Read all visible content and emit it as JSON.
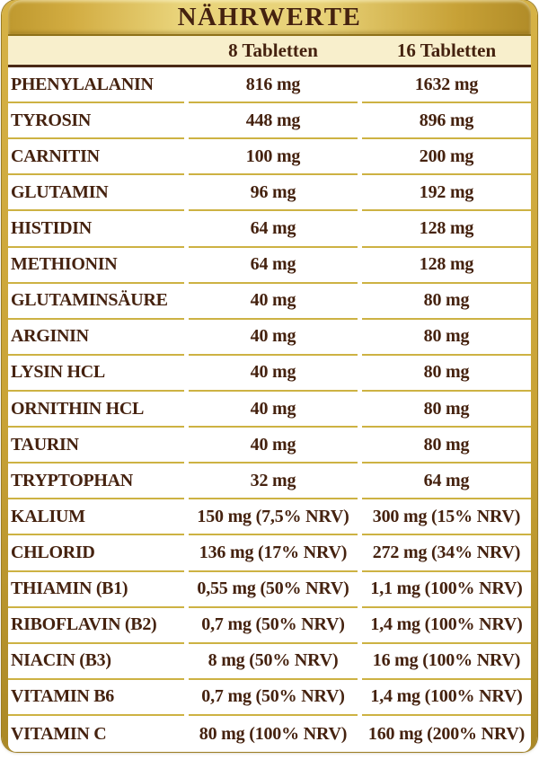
{
  "header": {
    "title": "NÄHRWERTE"
  },
  "columns": {
    "col_8": "8 Tabletten",
    "col_16": "16 Tabletten"
  },
  "rows": [
    {
      "name": "PHENYLALANIN",
      "dose8": "816 mg",
      "dose16": "1632 mg"
    },
    {
      "name": "TYROSIN",
      "dose8": "448 mg",
      "dose16": "896 mg"
    },
    {
      "name": "CARNITIN",
      "dose8": "100 mg",
      "dose16": "200 mg"
    },
    {
      "name": "GLUTAMIN",
      "dose8": "96 mg",
      "dose16": "192 mg"
    },
    {
      "name": "HISTIDIN",
      "dose8": "64 mg",
      "dose16": "128 mg"
    },
    {
      "name": "METHIONIN",
      "dose8": "64 mg",
      "dose16": "128 mg"
    },
    {
      "name": "GLUTAMINSÄURE",
      "dose8": "40 mg",
      "dose16": "80 mg"
    },
    {
      "name": "ARGININ",
      "dose8": "40 mg",
      "dose16": "80 mg"
    },
    {
      "name": "LYSIN HCL",
      "dose8": "40 mg",
      "dose16": "80 mg"
    },
    {
      "name": "ORNITHIN HCL",
      "dose8": "40 mg",
      "dose16": "80 mg"
    },
    {
      "name": "TAURIN",
      "dose8": "40 mg",
      "dose16": "80 mg"
    },
    {
      "name": "TRYPTOPHAN",
      "dose8": "32 mg",
      "dose16": "64 mg"
    },
    {
      "name": "KALIUM",
      "dose8": "150 mg (7,5% NRV)",
      "dose16": "300 mg (15% NRV)"
    },
    {
      "name": "CHLORID",
      "dose8": "136 mg (17% NRV)",
      "dose16": "272 mg (34% NRV)"
    },
    {
      "name": "THIAMIN (B1)",
      "dose8": "0,55 mg (50% NRV)",
      "dose16": "1,1 mg (100% NRV)"
    },
    {
      "name": "RIBOFLAVIN (B2)",
      "dose8": "0,7 mg (50% NRV)",
      "dose16": "1,4 mg (100% NRV)"
    },
    {
      "name": "NIACIN (B3)",
      "dose8": "8 mg (50% NRV)",
      "dose16": "16 mg (100% NRV)"
    },
    {
      "name": "VITAMIN B6",
      "dose8": "0,7 mg (50% NRV)",
      "dose16": "1,4 mg (100% NRV)"
    },
    {
      "name": "VITAMIN C",
      "dose8": "80 mg (100% NRV)",
      "dose16": "160 mg (200% NRV)"
    }
  ],
  "colors": {
    "frame_gold": "#C9A336",
    "frame_gold_dark": "#9C7C22",
    "band_gold_light": "#E9D47B",
    "cream_band": "#F8EFCC",
    "separator_gold": "#CDB243",
    "header_rule_brown": "#4B2A16",
    "text_brown": "#45220F",
    "row_background": "#FFFFFF"
  }
}
